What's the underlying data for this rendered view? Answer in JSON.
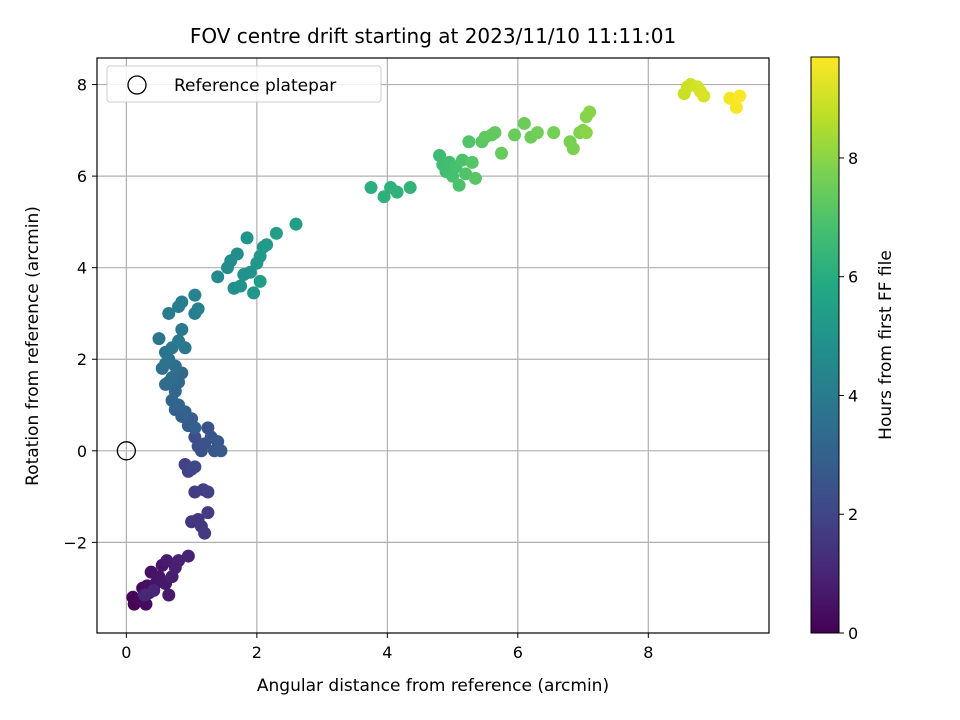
{
  "chart_data": {
    "type": "scatter",
    "title": "FOV centre drift starting at 2023/11/10 11:11:01",
    "xlabel": "Angular distance from reference (arcmin)",
    "ylabel": "Rotation from reference (arcmin)",
    "xlim": [
      -0.45,
      9.85
    ],
    "ylim": [
      -3.98,
      8.58
    ],
    "xticks": [
      0,
      2,
      4,
      6,
      8
    ],
    "yticks": [
      -2,
      0,
      2,
      4,
      6,
      8
    ],
    "ytick_labels": [
      "−2",
      "0",
      "2",
      "4",
      "6",
      "8"
    ],
    "grid": true,
    "colormap": "viridis",
    "colorbar": {
      "label": "Hours from first FF file",
      "range": [
        0,
        9.7
      ],
      "ticks": [
        0,
        2,
        4,
        6,
        8
      ]
    },
    "legend": {
      "placement": "top-left",
      "entries": [
        {
          "label": "Reference platepar",
          "marker": "hollow-circle"
        }
      ]
    },
    "reference_point": {
      "x": 0,
      "y": 0
    },
    "points": [
      [
        0.1,
        -3.2,
        0.05
      ],
      [
        0.12,
        -3.35,
        0.1
      ],
      [
        0.15,
        -3.3,
        0.15
      ],
      [
        0.2,
        -3.25,
        0.2
      ],
      [
        0.25,
        -3.0,
        0.25
      ],
      [
        0.3,
        -3.35,
        0.3
      ],
      [
        0.35,
        -3.1,
        0.35
      ],
      [
        0.32,
        -2.95,
        0.4
      ],
      [
        0.38,
        -2.65,
        0.45
      ],
      [
        0.45,
        -2.9,
        0.5
      ],
      [
        0.5,
        -2.75,
        0.55
      ],
      [
        0.55,
        -2.5,
        0.6
      ],
      [
        0.6,
        -2.9,
        0.65
      ],
      [
        0.65,
        -3.15,
        0.7
      ],
      [
        0.62,
        -2.4,
        0.75
      ],
      [
        0.7,
        -2.75,
        0.8
      ],
      [
        0.75,
        -2.55,
        0.85
      ],
      [
        0.8,
        -2.4,
        0.9
      ],
      [
        0.95,
        -2.3,
        0.95
      ],
      [
        0.42,
        -3.05,
        1.0
      ],
      [
        0.28,
        -3.15,
        1.05
      ],
      [
        1.0,
        -1.55,
        1.5
      ],
      [
        1.1,
        -1.5,
        1.55
      ],
      [
        1.15,
        -1.65,
        1.6
      ],
      [
        1.2,
        -1.8,
        1.65
      ],
      [
        1.25,
        -1.35,
        1.7
      ],
      [
        1.05,
        -0.9,
        1.75
      ],
      [
        1.18,
        -0.85,
        1.8
      ],
      [
        1.25,
        -0.9,
        1.85
      ],
      [
        0.9,
        -0.3,
        1.9
      ],
      [
        0.95,
        -0.45,
        1.95
      ],
      [
        1.0,
        -0.4,
        2.0
      ],
      [
        1.05,
        -0.35,
        2.05
      ],
      [
        1.05,
        0.3,
        2.3
      ],
      [
        1.1,
        0.1,
        2.35
      ],
      [
        1.15,
        0.0,
        2.4
      ],
      [
        1.2,
        0.15,
        2.45
      ],
      [
        1.25,
        0.5,
        2.5
      ],
      [
        1.3,
        0.3,
        2.55
      ],
      [
        1.35,
        0.0,
        2.6
      ],
      [
        1.4,
        0.2,
        2.65
      ],
      [
        1.45,
        0.0,
        2.7
      ],
      [
        0.95,
        0.55,
        2.8
      ],
      [
        1.0,
        0.7,
        2.85
      ],
      [
        1.05,
        0.5,
        2.9
      ],
      [
        0.85,
        0.75,
        2.95
      ],
      [
        0.9,
        0.85,
        3.0
      ],
      [
        0.75,
        0.9,
        3.05
      ],
      [
        0.8,
        1.0,
        3.1
      ],
      [
        0.7,
        1.1,
        3.15
      ],
      [
        0.75,
        1.3,
        3.2
      ],
      [
        0.8,
        1.5,
        3.25
      ],
      [
        0.85,
        1.7,
        3.3
      ],
      [
        0.65,
        1.5,
        3.35
      ],
      [
        0.6,
        1.45,
        3.4
      ],
      [
        0.7,
        1.6,
        3.45
      ],
      [
        0.75,
        1.85,
        3.5
      ],
      [
        0.6,
        1.9,
        3.55
      ],
      [
        0.55,
        1.8,
        3.6
      ],
      [
        0.65,
        2.0,
        3.65
      ],
      [
        0.6,
        2.15,
        3.7
      ],
      [
        0.7,
        2.25,
        3.75
      ],
      [
        0.5,
        2.45,
        3.8
      ],
      [
        0.9,
        2.25,
        3.85
      ],
      [
        0.85,
        2.65,
        3.9
      ],
      [
        0.8,
        2.4,
        3.95
      ],
      [
        0.65,
        3.0,
        4.0
      ],
      [
        0.8,
        3.15,
        4.05
      ],
      [
        0.85,
        3.25,
        4.1
      ],
      [
        1.05,
        3.0,
        4.15
      ],
      [
        1.1,
        3.1,
        4.2
      ],
      [
        1.05,
        3.4,
        4.25
      ],
      [
        1.4,
        3.8,
        4.6
      ],
      [
        1.55,
        4.0,
        4.65
      ],
      [
        1.6,
        4.15,
        4.7
      ],
      [
        1.7,
        4.3,
        4.75
      ],
      [
        1.65,
        3.55,
        4.8
      ],
      [
        1.75,
        3.6,
        4.85
      ],
      [
        1.8,
        3.85,
        4.9
      ],
      [
        1.9,
        3.9,
        4.95
      ],
      [
        1.85,
        4.65,
        5.0
      ],
      [
        1.95,
        3.45,
        5.05
      ],
      [
        2.0,
        4.1,
        5.1
      ],
      [
        2.05,
        4.25,
        5.15
      ],
      [
        2.1,
        4.45,
        5.2
      ],
      [
        2.15,
        4.5,
        5.25
      ],
      [
        2.05,
        3.7,
        5.3
      ],
      [
        2.3,
        4.75,
        5.35
      ],
      [
        2.6,
        4.95,
        5.4
      ],
      [
        3.75,
        5.75,
        6.1
      ],
      [
        3.95,
        5.55,
        6.15
      ],
      [
        4.05,
        5.75,
        6.2
      ],
      [
        4.15,
        5.65,
        6.25
      ],
      [
        4.35,
        5.75,
        6.3
      ],
      [
        4.8,
        6.45,
        6.6
      ],
      [
        4.85,
        6.25,
        6.65
      ],
      [
        4.9,
        6.1,
        6.7
      ],
      [
        4.95,
        6.3,
        6.75
      ],
      [
        5.0,
        6.0,
        6.8
      ],
      [
        5.05,
        6.2,
        6.85
      ],
      [
        5.1,
        5.8,
        6.9
      ],
      [
        5.15,
        6.35,
        6.95
      ],
      [
        5.2,
        6.05,
        7.0
      ],
      [
        5.25,
        6.75,
        7.05
      ],
      [
        5.3,
        6.3,
        7.1
      ],
      [
        5.35,
        5.95,
        7.15
      ],
      [
        5.45,
        6.75,
        7.2
      ],
      [
        5.5,
        6.85,
        7.25
      ],
      [
        5.6,
        6.9,
        7.3
      ],
      [
        5.65,
        6.95,
        7.35
      ],
      [
        5.75,
        6.5,
        7.4
      ],
      [
        5.95,
        6.9,
        7.45
      ],
      [
        6.1,
        7.15,
        7.5
      ],
      [
        6.2,
        6.85,
        7.55
      ],
      [
        6.3,
        6.95,
        7.6
      ],
      [
        6.55,
        6.95,
        7.65
      ],
      [
        6.8,
        6.75,
        7.7
      ],
      [
        6.85,
        6.6,
        7.75
      ],
      [
        6.95,
        6.95,
        7.8
      ],
      [
        7.0,
        7.0,
        7.85
      ],
      [
        7.05,
        7.3,
        7.9
      ],
      [
        7.1,
        7.4,
        7.95
      ],
      [
        7.05,
        6.95,
        8.0
      ],
      [
        8.55,
        7.8,
        8.9
      ],
      [
        8.6,
        7.95,
        8.95
      ],
      [
        8.65,
        8.0,
        9.0
      ],
      [
        8.75,
        7.95,
        9.05
      ],
      [
        8.8,
        7.85,
        9.1
      ],
      [
        8.85,
        7.75,
        9.15
      ],
      [
        9.25,
        7.7,
        9.55
      ],
      [
        9.35,
        7.5,
        9.6
      ],
      [
        9.4,
        7.75,
        9.65
      ]
    ]
  }
}
